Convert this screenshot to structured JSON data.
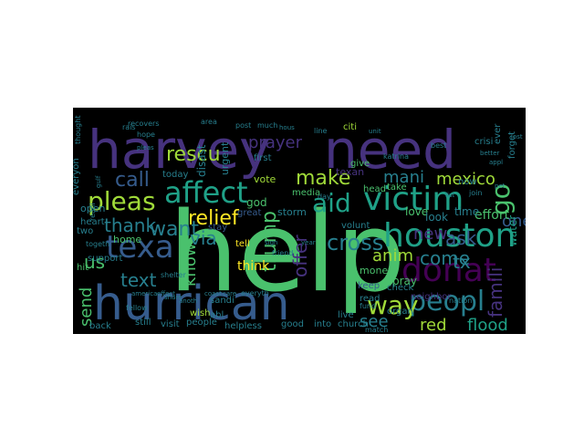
{
  "colors": {
    "background": "#000000",
    "page": "#ffffff",
    "palette": [
      "#440154",
      "#46327e",
      "#365c8d",
      "#277f8e",
      "#1fa187",
      "#4ac16d",
      "#a0da39",
      "#fde725"
    ]
  },
  "words": [
    {
      "text": "help",
      "color": "#4ac16d"
    },
    {
      "text": "harvey",
      "color": "#46327e"
    },
    {
      "text": "need",
      "color": "#46327e"
    },
    {
      "text": "hurrican",
      "color": "#365c8d"
    },
    {
      "text": "victim",
      "color": "#1fa187"
    },
    {
      "text": "houston",
      "color": "#1fa187"
    },
    {
      "text": "donat",
      "color": "#440154"
    },
    {
      "text": "affect",
      "color": "#1fa187"
    },
    {
      "text": "texa",
      "color": "#365c8d"
    },
    {
      "text": "pleas",
      "color": "#a0da39"
    },
    {
      "text": "peopl",
      "color": "#277f8e"
    },
    {
      "text": "aid",
      "color": "#1fa187"
    },
    {
      "text": "way",
      "color": "#a0da39"
    },
    {
      "text": "relief",
      "color": "#fde725"
    },
    {
      "text": "cross",
      "color": "#277f8e"
    },
    {
      "text": "make",
      "color": "#a0da39"
    },
    {
      "text": "call",
      "color": "#365c8d"
    },
    {
      "text": "rescu",
      "color": "#a0da39"
    },
    {
      "text": "prayer",
      "color": "#46327e"
    },
    {
      "text": "mani",
      "color": "#277f8e"
    },
    {
      "text": "mexico",
      "color": "#a0da39"
    },
    {
      "text": "want",
      "color": "#277f8e"
    },
    {
      "text": "via",
      "color": "#277f8e"
    },
    {
      "text": "anim",
      "color": "#a0da39"
    },
    {
      "text": "new",
      "color": "#46327e"
    },
    {
      "text": "ask",
      "color": "#365c8d"
    },
    {
      "text": "go",
      "color": "#4ac16d"
    },
    {
      "text": "us",
      "color": "#4ac16d"
    },
    {
      "text": "thank",
      "color": "#277f8e"
    },
    {
      "text": "text",
      "color": "#277f8e"
    },
    {
      "text": "trump",
      "color": "#4ac16d"
    },
    {
      "text": "know",
      "color": "#4ac16d"
    },
    {
      "text": "offer",
      "color": "#46327e"
    },
    {
      "text": "see",
      "color": "#277f8e"
    },
    {
      "text": "come",
      "color": "#277f8e"
    },
    {
      "text": "tx",
      "color": "#277f8e"
    },
    {
      "text": "send",
      "color": "#4ac16d"
    },
    {
      "text": "famili",
      "color": "#46327e"
    },
    {
      "text": "one",
      "color": "#365c8d"
    },
    {
      "text": "flood",
      "color": "#1fa187"
    },
    {
      "text": "red",
      "color": "#a0da39"
    },
    {
      "text": "think",
      "color": "#fde725"
    },
    {
      "text": "water",
      "color": "#1fa187"
    },
    {
      "text": "effort",
      "color": "#4ac16d"
    },
    {
      "text": "money",
      "color": "#4ac16d"
    },
    {
      "text": "love",
      "color": "#4ac16d"
    },
    {
      "text": "pray",
      "color": "#4ac16d"
    },
    {
      "text": "time",
      "color": "#277f8e"
    },
    {
      "text": "look",
      "color": "#277f8e"
    },
    {
      "text": "god",
      "color": "#4ac16d"
    },
    {
      "text": "vote",
      "color": "#a0da39"
    },
    {
      "text": "texan",
      "color": "#46327e"
    },
    {
      "text": "home",
      "color": "#4ac16d"
    },
    {
      "text": "open",
      "color": "#277f8e"
    },
    {
      "text": "storm",
      "color": "#277f8e"
    },
    {
      "text": "great",
      "color": "#365c8d"
    },
    {
      "text": "volunt",
      "color": "#277f8e"
    },
    {
      "text": "disast",
      "color": "#277f8e"
    },
    {
      "text": "urgent",
      "color": "#277f8e"
    },
    {
      "text": "everyon",
      "color": "#277f8e"
    },
    {
      "text": "today",
      "color": "#277f8e"
    },
    {
      "text": "head",
      "color": "#4ac16d"
    },
    {
      "text": "take",
      "color": "#4ac16d"
    },
    {
      "text": "give",
      "color": "#4ac16d"
    },
    {
      "text": "keep",
      "color": "#365c8d"
    },
    {
      "text": "read",
      "color": "#277f8e"
    },
    {
      "text": "check",
      "color": "#277f8e"
    },
    {
      "text": "church",
      "color": "#277f8e"
    },
    {
      "text": "into",
      "color": "#277f8e"
    },
    {
      "text": "support",
      "color": "#277f8e"
    },
    {
      "text": "heart",
      "color": "#277f8e"
    },
    {
      "text": "tell",
      "color": "#fde725"
    },
    {
      "text": "stay",
      "color": "#365c8d"
    },
    {
      "text": "neighbor",
      "color": "#46327e"
    },
    {
      "text": "sandi",
      "color": "#277f8e"
    },
    {
      "text": "helpless",
      "color": "#277f8e"
    },
    {
      "text": "still",
      "color": "#277f8e"
    },
    {
      "text": "visit",
      "color": "#277f8e"
    },
    {
      "text": "people",
      "color": "#277f8e"
    },
    {
      "text": "back",
      "color": "#277f8e"
    },
    {
      "text": "hit",
      "color": "#4ac16d"
    },
    {
      "text": "two",
      "color": "#277f8e"
    },
    {
      "text": "media",
      "color": "#4ac16d"
    },
    {
      "text": "first",
      "color": "#277f8e"
    },
    {
      "text": "post",
      "color": "#277f8e"
    },
    {
      "text": "much",
      "color": "#277f8e"
    },
    {
      "text": "good",
      "color": "#277f8e"
    },
    {
      "text": "fund",
      "color": "#277f8e"
    },
    {
      "text": "wish",
      "color": "#a0da39"
    },
    {
      "text": "abl",
      "color": "#277f8e"
    },
    {
      "text": "citi",
      "color": "#a0da39"
    },
    {
      "text": "line",
      "color": "#277f8e"
    },
    {
      "text": "day",
      "color": "#277f8e"
    },
    {
      "text": "live",
      "color": "#277f8e"
    },
    {
      "text": "organ",
      "color": "#277f8e"
    },
    {
      "text": "match",
      "color": "#277f8e"
    },
    {
      "text": "crisi",
      "color": "#277f8e"
    },
    {
      "text": "best",
      "color": "#277f8e"
    },
    {
      "text": "now",
      "color": "#277f8e"
    },
    {
      "text": "join",
      "color": "#277f8e"
    },
    {
      "text": "ever",
      "color": "#277f8e"
    },
    {
      "text": "forget",
      "color": "#277f8e"
    },
    {
      "text": "katrina",
      "color": "#277f8e"
    },
    {
      "text": "nation",
      "color": "#277f8e"
    },
    {
      "text": "recovers",
      "color": "#277f8e"
    },
    {
      "text": "friend",
      "color": "#277f8e"
    },
    {
      "text": "coast",
      "color": "#277f8e"
    },
    {
      "text": "care",
      "color": "#277f8e"
    },
    {
      "text": "everyth",
      "color": "#277f8e"
    },
    {
      "text": "america",
      "color": "#277f8e"
    },
    {
      "text": "fellow",
      "color": "#277f8e"
    },
    {
      "text": "shelter",
      "color": "#277f8e"
    },
    {
      "text": "rais",
      "color": "#277f8e"
    },
    {
      "text": "area",
      "color": "#277f8e"
    },
    {
      "text": "hope",
      "color": "#277f8e"
    },
    {
      "text": "togeth",
      "color": "#277f8e"
    },
    {
      "text": "share",
      "color": "#277f8e"
    },
    {
      "text": "realli",
      "color": "#277f8e"
    },
    {
      "text": "gulf",
      "color": "#277f8e"
    },
    {
      "text": "effect",
      "color": "#277f8e"
    },
    {
      "text": "anoth",
      "color": "#277f8e"
    },
    {
      "text": "sign",
      "color": "#277f8e"
    },
    {
      "text": "year",
      "color": "#277f8e"
    },
    {
      "text": "thought",
      "color": "#277f8e"
    },
    {
      "text": "hous",
      "color": "#277f8e"
    },
    {
      "text": "lost",
      "color": "#277f8e"
    },
    {
      "text": "unit",
      "color": "#277f8e"
    },
    {
      "text": "list",
      "color": "#277f8e"
    },
    {
      "text": "pet",
      "color": "#277f8e"
    },
    {
      "text": "appl",
      "color": "#277f8e"
    },
    {
      "text": "better",
      "color": "#277f8e"
    },
    {
      "text": "pleas",
      "color": "#277f8e"
    }
  ]
}
